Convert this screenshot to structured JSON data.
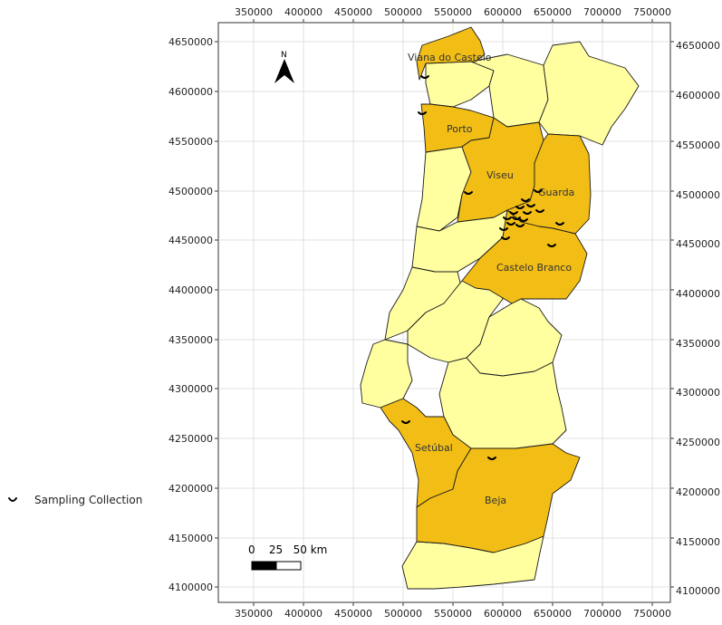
{
  "map": {
    "x_ticks": [
      "350000",
      "400000",
      "450000",
      "500000",
      "550000",
      "600000",
      "650000",
      "700000",
      "750000"
    ],
    "y_ticks": [
      "4650000",
      "4600000",
      "4550000",
      "4500000",
      "4450000",
      "4400000",
      "4350000",
      "4300000",
      "4250000",
      "4200000",
      "4150000",
      "4100000"
    ],
    "region_labels": {
      "viana": "Viana do Castelo",
      "porto": "Porto",
      "viseu": "Viseu",
      "guarda": "Guarda",
      "castelo_branco": "Castelo Branco",
      "setubal": "Setúbal",
      "beja": "Beja"
    },
    "north_arrow_label": "N",
    "scalebar": {
      "label": "0    25   50 km"
    },
    "colors": {
      "highlighted": "#F2BE16",
      "other": "#FFFFA0",
      "border": "#1a1a1a",
      "grid": "#d6d6d6"
    }
  },
  "legend": {
    "label": "Sampling Collection",
    "icon": "sampling-site-icon"
  }
}
